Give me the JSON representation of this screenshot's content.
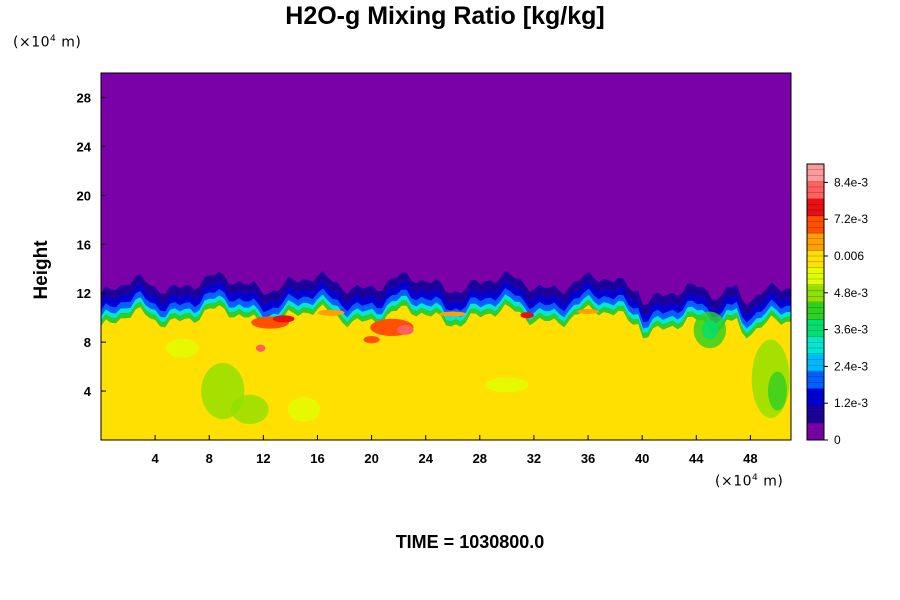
{
  "chart_data": {
    "type": "heatmap",
    "title": "H2O-g Mixing Ratio [kg/kg]",
    "ylabel": "Height",
    "xlabel": "",
    "x_unit_label": "(×10",
    "x_unit_exp": "4",
    "x_unit_tail": " m)",
    "y_unit_label": "(×10",
    "y_unit_exp": "4",
    "y_unit_tail": " m)",
    "x_ticks": [
      4,
      8,
      12,
      16,
      20,
      24,
      28,
      32,
      36,
      40,
      44,
      48
    ],
    "y_ticks": [
      4,
      8,
      12,
      16,
      20,
      24,
      28
    ],
    "xlim": [
      0,
      51
    ],
    "ylim": [
      0,
      30
    ],
    "grid": false,
    "colorbar": {
      "min": 0,
      "max": 0.009,
      "labels": [
        "0",
        "1.2e-3",
        "2.4e-3",
        "3.6e-3",
        "4.8e-3",
        "0.006",
        "7.2e-3",
        "8.4e-3"
      ],
      "label_values": [
        0,
        0.0012,
        0.0024,
        0.0036,
        0.0048,
        0.006,
        0.0072,
        0.0084
      ],
      "colors": [
        "#7a00a8",
        "#1c009c",
        "#0000d6",
        "#0060ff",
        "#00b8ff",
        "#00e8d0",
        "#00e070",
        "#30d020",
        "#90e000",
        "#e0ff00",
        "#ffe000",
        "#ffa000",
        "#ff5000",
        "#e81010",
        "#ff6060",
        "#ff9a9a"
      ]
    },
    "regions": {
      "upper_dry_value": 0,
      "lower_moist_value": 0.0058,
      "transition_height_mean": 11.5,
      "moist_pockets_value": 0.0078
    }
  },
  "footer": {
    "time_text": "TIME = 1030800.0"
  }
}
